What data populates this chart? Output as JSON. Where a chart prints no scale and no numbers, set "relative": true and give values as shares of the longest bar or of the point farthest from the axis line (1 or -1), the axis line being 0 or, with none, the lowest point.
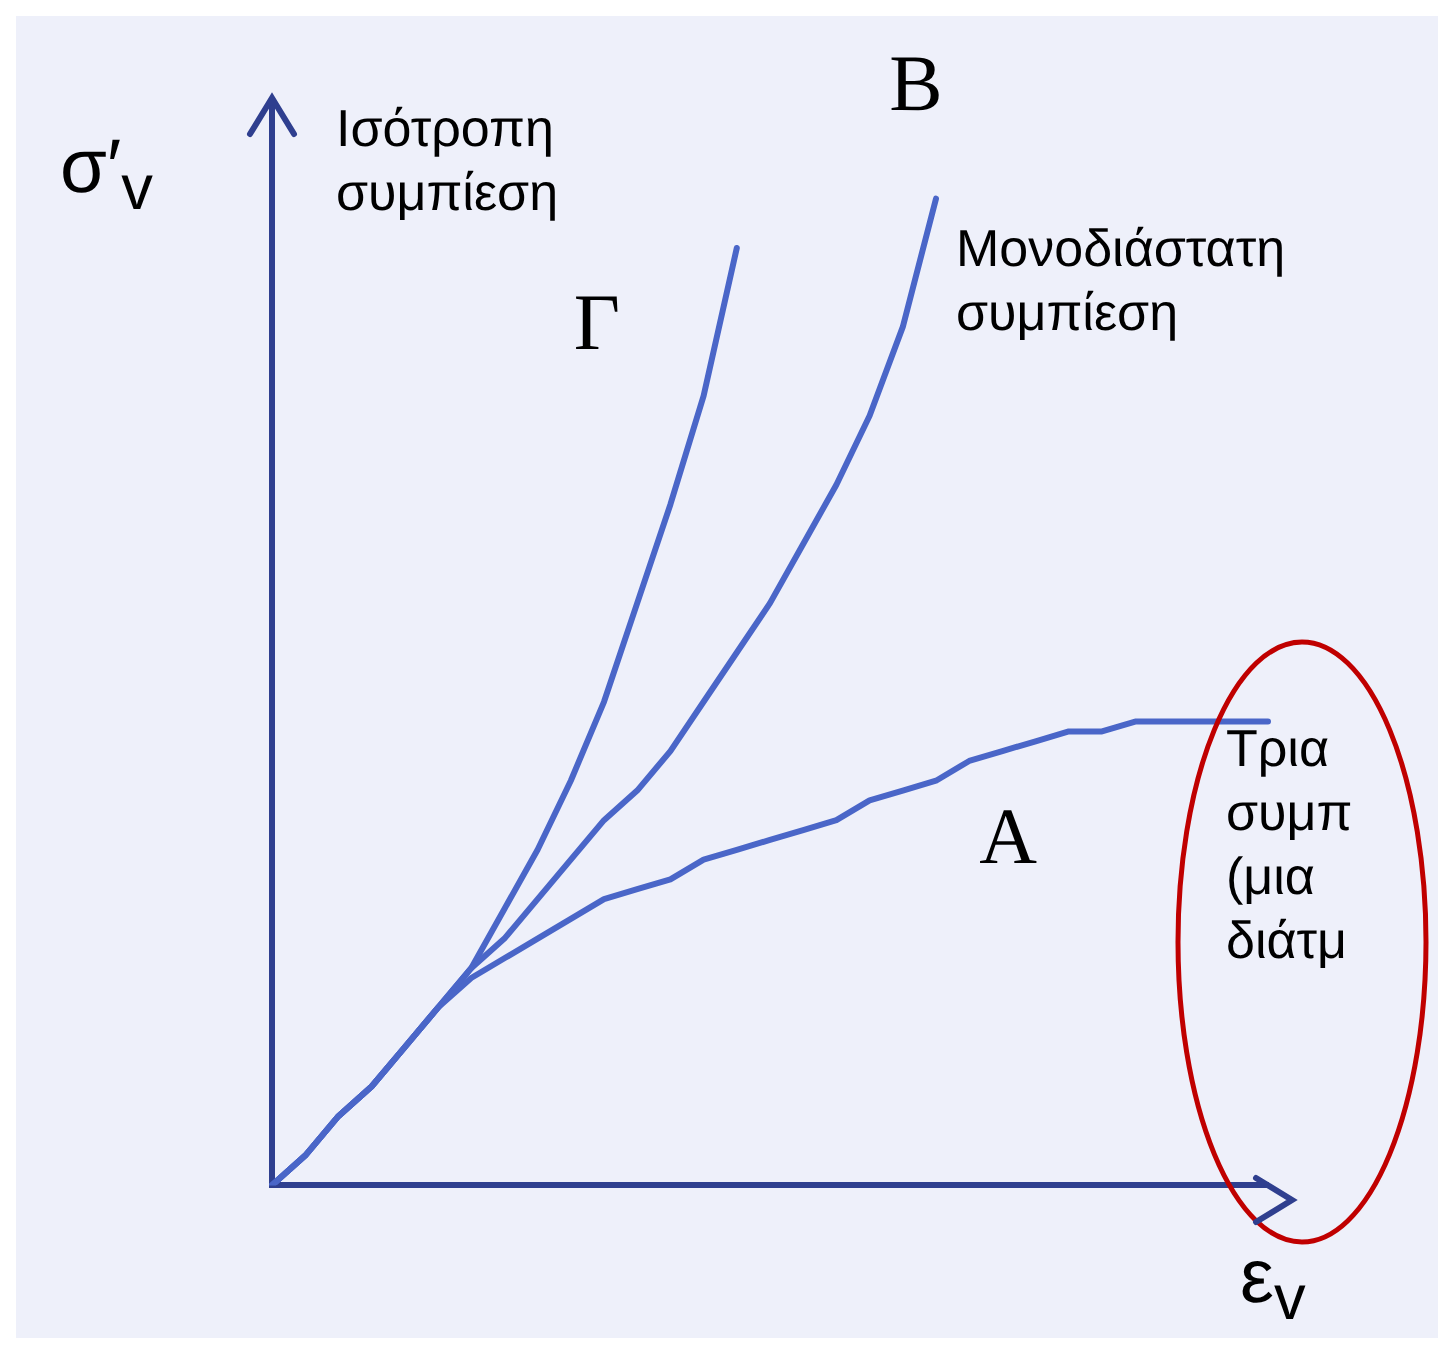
{
  "chart_data": {
    "type": "line",
    "relative": true,
    "xlabel": "ε$_{v}$",
    "ylabel": "σ′$_{v}$",
    "legend": false,
    "grid": false,
    "marker": "none",
    "line_style": "solid",
    "categories": [
      null,
      null,
      null,
      null,
      null,
      null,
      null,
      null,
      null,
      null,
      null,
      null,
      null,
      null,
      null,
      null,
      null,
      null,
      null,
      null,
      null,
      null,
      null,
      null,
      null,
      null,
      null,
      null,
      null,
      null,
      null
    ],
    "series": [
      {
        "name": "A",
        "color": "#4a66c8",
        "values": [
          0,
          0.03,
          0.07,
          0.1,
          0.14,
          0.18,
          0.21,
          0.23,
          0.25,
          0.27,
          0.29,
          0.3,
          0.31,
          0.33,
          0.34,
          0.35,
          0.36,
          0.37,
          0.39,
          0.4,
          0.41,
          0.43,
          0.44,
          0.45,
          0.46,
          0.46,
          0.47,
          0.47,
          0.47,
          0.47,
          0.47
        ]
      },
      {
        "name": "B",
        "color": "#4a66c8",
        "values": [
          0,
          0.03,
          0.07,
          0.1,
          0.14,
          0.18,
          0.22,
          0.25,
          0.29,
          0.33,
          0.37,
          0.4,
          0.44,
          0.49,
          0.54,
          0.59,
          0.65,
          0.71,
          0.78,
          0.87,
          1,
          null,
          null,
          null,
          null,
          null,
          null,
          null,
          null,
          null,
          null
        ]
      },
      {
        "name": "Γ",
        "color": "#4a66c8",
        "values": [
          0,
          0.03,
          0.07,
          0.1,
          0.14,
          0.18,
          0.22,
          0.28,
          0.34,
          0.41,
          0.49,
          0.59,
          0.69,
          0.8,
          0.95,
          null,
          null,
          null,
          null,
          null,
          null,
          null,
          null,
          null,
          null,
          null,
          null,
          null,
          null,
          null,
          null
        ]
      }
    ],
    "annotations": [
      "Ισότροπη\nσυμπίεση",
      "Μονοδιάστατη\nσυμπίεση",
      "Τρια\nσυμπ\n(μια\nδιάτμ"
    ]
  }
}
